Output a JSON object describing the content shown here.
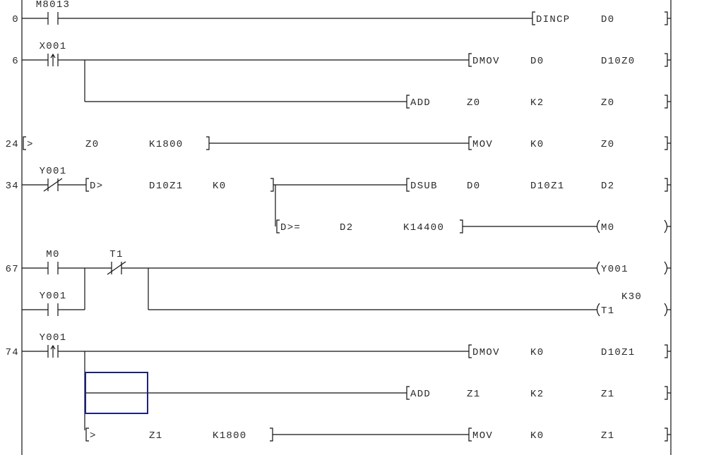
{
  "editor": {
    "cursor_color": "#1a237e",
    "line_color": "#111111"
  },
  "rungs": [
    {
      "step": "0",
      "contacts": [
        "M8013"
      ],
      "outputs": [
        {
          "op": "DINCP",
          "args": [
            "D0"
          ]
        }
      ]
    },
    {
      "step": "6",
      "contacts": [
        "X001"
      ],
      "outputs": [
        {
          "op": "DMOV",
          "args": [
            "D0",
            "D10Z0"
          ]
        },
        {
          "op": "ADD",
          "args": [
            "Z0",
            "K2",
            "Z0"
          ]
        }
      ]
    },
    {
      "step": "24",
      "compare": {
        "op": ">",
        "args": [
          "Z0",
          "K1800"
        ]
      },
      "outputs": [
        {
          "op": "MOV",
          "args": [
            "K0",
            "Z0"
          ]
        }
      ]
    },
    {
      "step": "34",
      "contacts": [
        "Y001"
      ],
      "compare": {
        "op": "D>",
        "args": [
          "D10Z1",
          "K0"
        ]
      },
      "outputs": [
        {
          "op": "DSUB",
          "args": [
            "D0",
            "D10Z1",
            "D2"
          ]
        }
      ],
      "compare2": {
        "op": "D>=",
        "args": [
          "D2",
          "K14400"
        ]
      },
      "coils": [
        "M0"
      ]
    },
    {
      "step": "67",
      "contacts": [
        "M0",
        "T1",
        "Y001"
      ],
      "coils": [
        "Y001",
        "T1"
      ],
      "timer_setting": "K30"
    },
    {
      "step": "74",
      "contacts": [
        "Y001"
      ],
      "outputs": [
        {
          "op": "DMOV",
          "args": [
            "K0",
            "D10Z1"
          ]
        },
        {
          "op": "ADD",
          "args": [
            "Z1",
            "K2",
            "Z1"
          ]
        },
        {
          "op": "MOV",
          "args": [
            "K0",
            "Z1"
          ]
        }
      ],
      "compare": {
        "op": ">",
        "args": [
          "Z1",
          "K1800"
        ]
      }
    }
  ]
}
